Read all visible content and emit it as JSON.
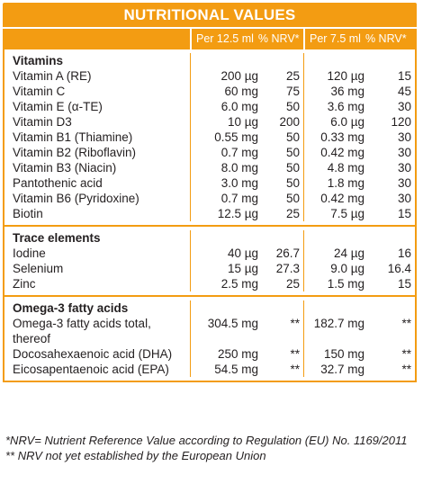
{
  "title": "NUTRITIONAL VALUES",
  "columns": {
    "per1": "Per 12.5 ml",
    "nrv1": "% NRV*",
    "per2": "Per 7.5 ml",
    "nrv2": "% NRV*"
  },
  "sections": [
    {
      "heading": "Vitamins",
      "rows": [
        {
          "name": "Vitamin A (RE)",
          "v1": "200 µg",
          "n1": "25",
          "v2": "120 µg",
          "n2": "15"
        },
        {
          "name": "Vitamin C",
          "v1": "60 mg",
          "n1": "75",
          "v2": "36 mg",
          "n2": "45"
        },
        {
          "name": "Vitamin E (α-TE)",
          "v1": "6.0 mg",
          "n1": "50",
          "v2": "3.6 mg",
          "n2": "30"
        },
        {
          "name": "Vitamin D3",
          "v1": "10 µg",
          "n1": "200",
          "v2": "6.0 µg",
          "n2": "120"
        },
        {
          "name": "Vitamin B1 (Thiamine)",
          "v1": "0.55 mg",
          "n1": "50",
          "v2": "0.33 mg",
          "n2": "30"
        },
        {
          "name": "Vitamin B2 (Riboflavin)",
          "v1": "0.7 mg",
          "n1": "50",
          "v2": "0.42 mg",
          "n2": "30"
        },
        {
          "name": "Vitamin B3 (Niacin)",
          "v1": "8.0 mg",
          "n1": "50",
          "v2": "4.8 mg",
          "n2": "30"
        },
        {
          "name": "Pantothenic acid",
          "v1": "3.0 mg",
          "n1": "50",
          "v2": "1.8 mg",
          "n2": "30"
        },
        {
          "name": "Vitamin B6 (Pyridoxine)",
          "v1": "0.7 mg",
          "n1": "50",
          "v2": "0.42 mg",
          "n2": "30"
        },
        {
          "name": "Biotin",
          "v1": "12.5 µg",
          "n1": "25",
          "v2": "7.5 µg",
          "n2": "15"
        }
      ]
    },
    {
      "heading": "Trace elements",
      "rows": [
        {
          "name": "Iodine",
          "v1": "40 µg",
          "n1": "26.7",
          "v2": "24 µg",
          "n2": "16"
        },
        {
          "name": "Selenium",
          "v1": "15 µg",
          "n1": "27.3",
          "v2": "9.0 µg",
          "n2": "16.4"
        },
        {
          "name": "Zinc",
          "v1": "2.5 mg",
          "n1": "25",
          "v2": "1.5 mg",
          "n2": "15"
        }
      ]
    },
    {
      "heading": "Omega-3 fatty acids",
      "rows": [
        {
          "name": "Omega-3 fatty acids total, thereof",
          "v1": "304.5 mg",
          "n1": "**",
          "v2": "182.7 mg",
          "n2": "**",
          "two": true
        },
        {
          "name": "Docosahexaenoic acid (DHA)",
          "v1": "250 mg",
          "n1": "**",
          "v2": "150 mg",
          "n2": "**"
        },
        {
          "name": "Eicosapentaenoic acid (EPA)",
          "v1": "54.5 mg",
          "n1": "**",
          "v2": "32.7 mg",
          "n2": "**"
        }
      ]
    }
  ],
  "footnotes": {
    "nrv": "*NRV= Nutrient Reference Value according to Regulation (EU) No. 1169/2011",
    "not_established": "** NRV not yet established by the European Union"
  }
}
